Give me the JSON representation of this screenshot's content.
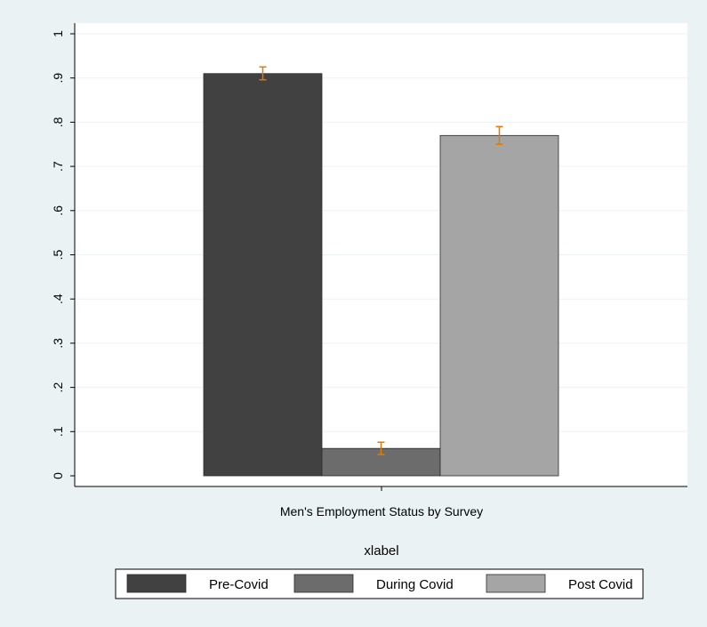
{
  "chart_data": {
    "type": "bar",
    "title": "",
    "categories": [
      "Men's Employment Status by Survey"
    ],
    "xlabel": "xlabel",
    "ylabel": "",
    "ylim": [
      0,
      1
    ],
    "yticks": [
      "0",
      ".1",
      ".2",
      ".3",
      ".4",
      ".5",
      ".6",
      ".7",
      ".8",
      ".9",
      "1"
    ],
    "series": [
      {
        "name": "Pre-Covid",
        "values": [
          0.91
        ],
        "ci": [
          [
            0.896,
            0.925
          ]
        ],
        "color": "#414141"
      },
      {
        "name": "During Covid",
        "values": [
          0.062
        ],
        "ci": [
          [
            0.048,
            0.076
          ]
        ],
        "color": "#6c6c6c"
      },
      {
        "name": "Post Covid",
        "values": [
          0.77
        ],
        "ci": [
          [
            0.75,
            0.79
          ]
        ],
        "color": "#a5a5a5"
      }
    ],
    "error_bar_color": "#e07b00",
    "grid": true,
    "legend_position": "bottom"
  }
}
